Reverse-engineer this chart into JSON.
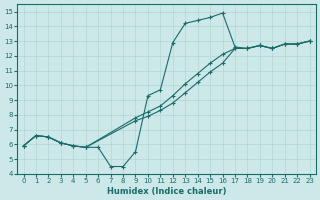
{
  "xlabel": "Humidex (Indice chaleur)",
  "xlim": [
    -0.5,
    23.5
  ],
  "ylim": [
    4,
    15.5
  ],
  "xticks": [
    0,
    1,
    2,
    3,
    4,
    5,
    6,
    7,
    8,
    9,
    10,
    11,
    12,
    13,
    14,
    15,
    16,
    17,
    18,
    19,
    20,
    21,
    22,
    23
  ],
  "yticks": [
    4,
    5,
    6,
    7,
    8,
    9,
    10,
    11,
    12,
    13,
    14,
    15
  ],
  "bg_color": "#cce8e8",
  "line_color": "#1a6b6b",
  "grid_color": "#b8d8d8",
  "line1_x": [
    0,
    1,
    2,
    3,
    4,
    5,
    6,
    7,
    8,
    9,
    10,
    11,
    12,
    13,
    14,
    15,
    16,
    17,
    18,
    19,
    20,
    21,
    22,
    23
  ],
  "line1_y": [
    5.9,
    6.6,
    6.5,
    6.1,
    5.9,
    5.8,
    5.8,
    4.5,
    4.5,
    5.5,
    9.3,
    9.7,
    12.9,
    14.2,
    14.4,
    14.6,
    14.9,
    12.6,
    12.5,
    12.7,
    12.5,
    12.8,
    12.8,
    13.0
  ],
  "line2_x": [
    0,
    1,
    2,
    3,
    4,
    5,
    9,
    10,
    11,
    12,
    13,
    14,
    15,
    16,
    17,
    18,
    19,
    20,
    21,
    22,
    23
  ],
  "line2_y": [
    5.9,
    6.6,
    6.5,
    6.1,
    5.9,
    5.8,
    7.8,
    8.2,
    8.6,
    9.3,
    10.1,
    10.8,
    11.5,
    12.1,
    12.5,
    12.5,
    12.7,
    12.5,
    12.8,
    12.8,
    13.0
  ],
  "line3_x": [
    0,
    1,
    2,
    3,
    4,
    5,
    9,
    10,
    11,
    12,
    13,
    14,
    15,
    16,
    17,
    18,
    19,
    20,
    21,
    22,
    23
  ],
  "line3_y": [
    5.9,
    6.6,
    6.5,
    6.1,
    5.9,
    5.8,
    7.6,
    7.9,
    8.3,
    8.8,
    9.5,
    10.2,
    10.9,
    11.5,
    12.5,
    12.5,
    12.7,
    12.5,
    12.8,
    12.8,
    13.0
  ]
}
